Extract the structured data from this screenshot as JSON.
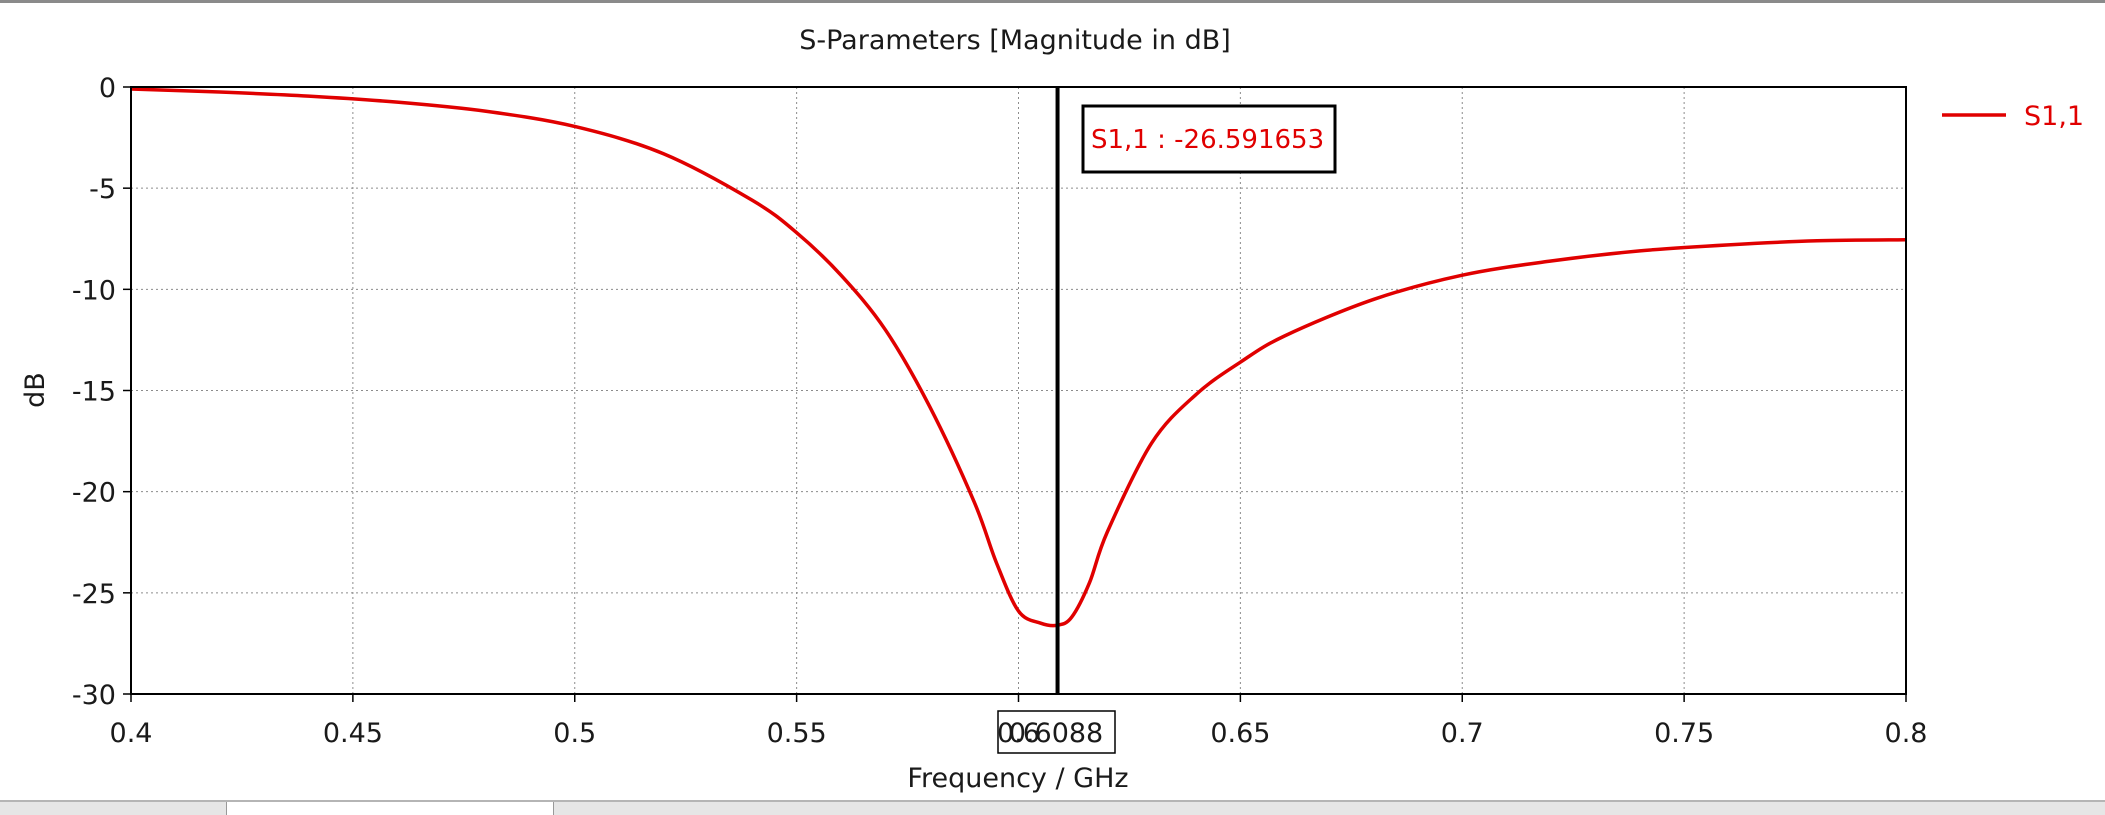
{
  "chart_data": {
    "type": "line",
    "title": "S-Parameters [Magnitude in dB]",
    "xlabel": "Frequency / GHz",
    "ylabel": "dB",
    "xlim": [
      0.4,
      0.8
    ],
    "ylim": [
      -30,
      0
    ],
    "x_ticks": [
      0.4,
      0.45,
      0.5,
      0.55,
      0.6,
      0.65,
      0.7,
      0.75,
      0.8
    ],
    "y_ticks": [
      0,
      -5,
      -10,
      -15,
      -20,
      -25,
      -30
    ],
    "x_tick_labels": [
      "0.4",
      "0.45",
      "0.5",
      "0.55",
      "0.6",
      "0.65",
      "0.7",
      "0.75",
      "0.8"
    ],
    "y_tick_labels": [
      "0",
      "-5",
      "-10",
      "-15",
      "-20",
      "-25",
      "-30"
    ],
    "grid": true,
    "legend_position": "top-right",
    "series": [
      {
        "name": "S1,1",
        "color": "#e00000",
        "x": [
          0.4,
          0.42,
          0.44,
          0.46,
          0.48,
          0.5,
          0.52,
          0.54,
          0.55,
          0.56,
          0.57,
          0.58,
          0.59,
          0.595,
          0.6,
          0.605,
          0.6088,
          0.612,
          0.616,
          0.62,
          0.63,
          0.64,
          0.65,
          0.66,
          0.68,
          0.7,
          0.72,
          0.74,
          0.76,
          0.78,
          0.8
        ],
        "y": [
          -0.1,
          -0.25,
          -0.45,
          -0.75,
          -1.2,
          -1.95,
          -3.3,
          -5.6,
          -7.2,
          -9.3,
          -12.0,
          -15.8,
          -20.5,
          -23.5,
          -25.9,
          -26.5,
          -26.6,
          -26.2,
          -24.5,
          -22.0,
          -17.6,
          -15.2,
          -13.6,
          -12.3,
          -10.5,
          -9.3,
          -8.6,
          -8.1,
          -7.8,
          -7.6,
          -7.55
        ]
      }
    ],
    "marker": {
      "x": 0.6088,
      "x_label": "0.6088",
      "annotation": "S1,1 : -26.591653",
      "color": "#000000"
    }
  },
  "tabs": [
    "",
    ""
  ]
}
